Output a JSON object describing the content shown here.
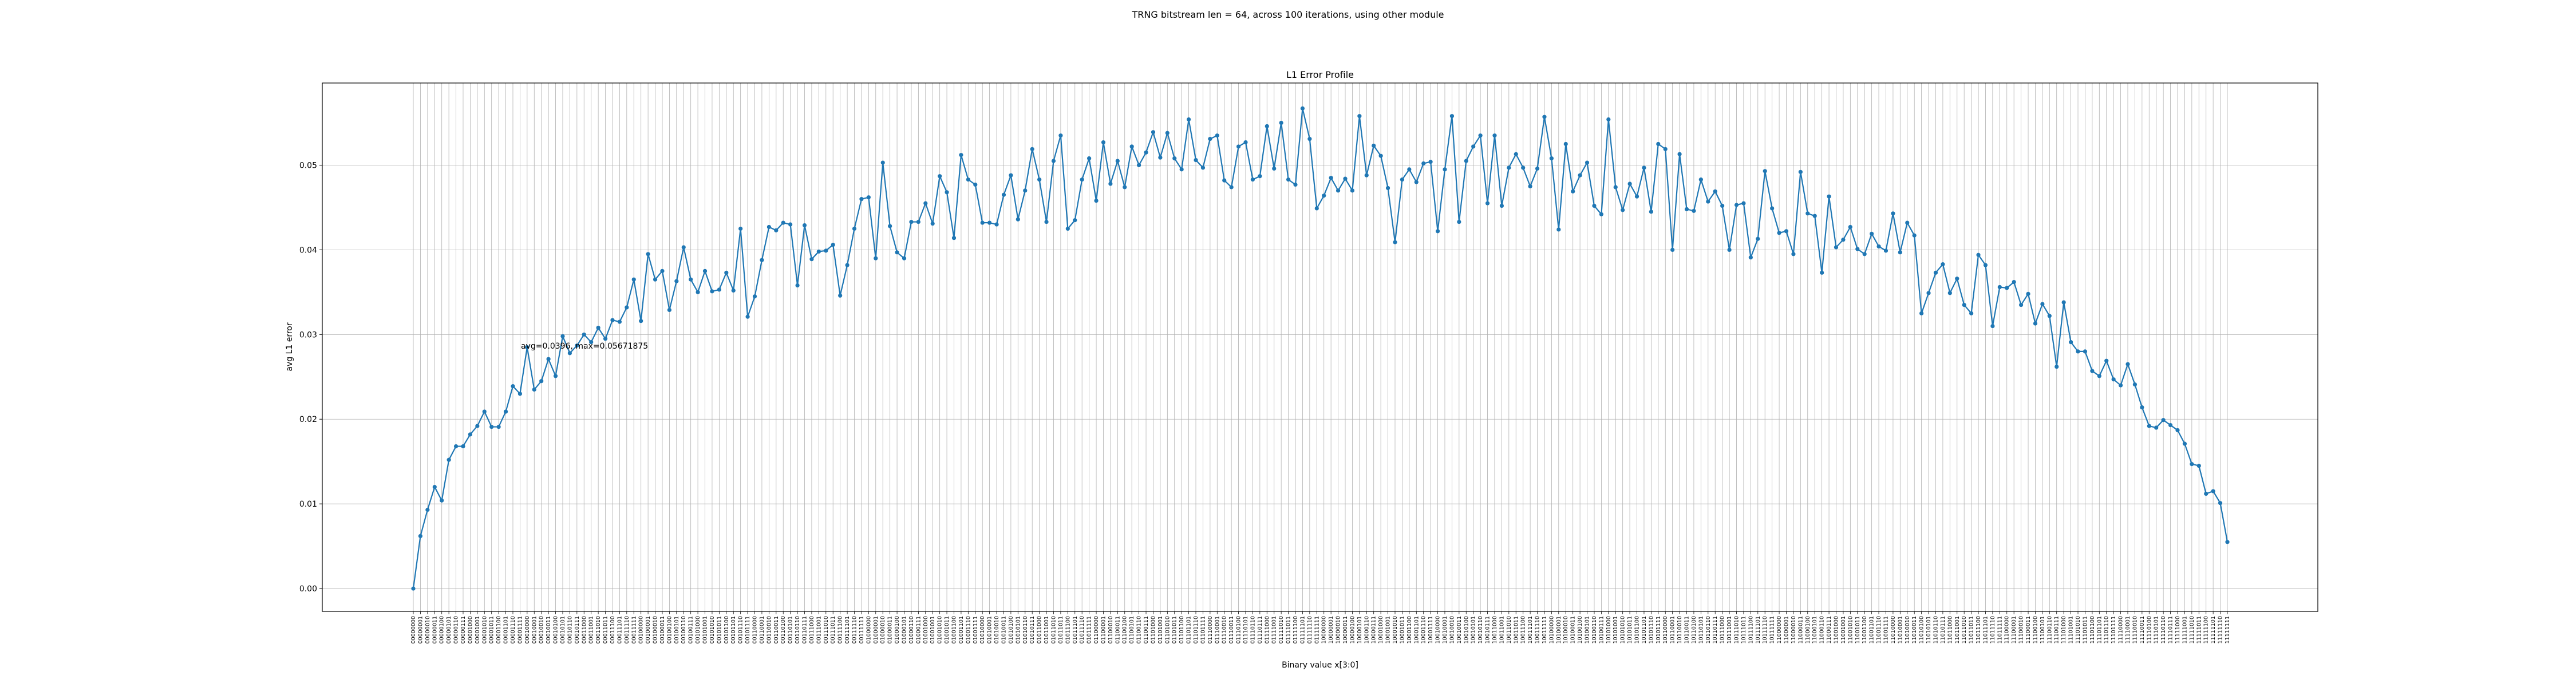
{
  "suptitle": "TRNG bitstream len = 64, across 100 iterations, using other module",
  "chart_data": {
    "type": "line",
    "title": "L1 Error Profile",
    "xlabel": "Binary value x[3:0]",
    "ylabel": "avg L1 error",
    "x_tick_labels": "8-bit binary strings 00000000 through 11111111 (256 categories)",
    "ylim": [
      -0.0027,
      0.0597
    ],
    "yticks": [
      "0.00",
      "0.01",
      "0.02",
      "0.03",
      "0.04",
      "0.05"
    ],
    "grid": true,
    "marker": "circle",
    "color": "#1f77b4",
    "annotation": "avg=0.0396, max=0.05671875",
    "values": [
      0.0,
      0.0062,
      0.0093,
      0.012,
      0.0104,
      0.0152,
      0.0168,
      0.0168,
      0.0182,
      0.0192,
      0.0209,
      0.0191,
      0.0191,
      0.0209,
      0.0239,
      0.023,
      0.0285,
      0.0235,
      0.0245,
      0.0271,
      0.0251,
      0.0298,
      0.0278,
      0.0287,
      0.03,
      0.0291,
      0.0308,
      0.0295,
      0.0317,
      0.0315,
      0.0332,
      0.0365,
      0.0316,
      0.0395,
      0.0365,
      0.0375,
      0.0329,
      0.0363,
      0.0403,
      0.0365,
      0.035,
      0.0375,
      0.0351,
      0.0353,
      0.0373,
      0.0352,
      0.0425,
      0.0321,
      0.0345,
      0.0388,
      0.0427,
      0.0423,
      0.0432,
      0.043,
      0.0358,
      0.0429,
      0.0389,
      0.0398,
      0.0399,
      0.0406,
      0.0346,
      0.0382,
      0.0425,
      0.046,
      0.0462,
      0.039,
      0.0503,
      0.0428,
      0.0397,
      0.039,
      0.0433,
      0.0433,
      0.0455,
      0.0431,
      0.0487,
      0.0468,
      0.0414,
      0.0512,
      0.0483,
      0.0477,
      0.0432,
      0.0432,
      0.043,
      0.0465,
      0.0488,
      0.0436,
      0.047,
      0.0519,
      0.0483,
      0.0433,
      0.0505,
      0.0535,
      0.0425,
      0.0435,
      0.0483,
      0.0508,
      0.0458,
      0.0527,
      0.0478,
      0.0505,
      0.0474,
      0.0522,
      0.05,
      0.0515,
      0.0539,
      0.0509,
      0.0538,
      0.0508,
      0.0495,
      0.0554,
      0.0506,
      0.0497,
      0.0531,
      0.0535,
      0.0482,
      0.0474,
      0.0522,
      0.0527,
      0.0483,
      0.0487,
      0.0546,
      0.0496,
      0.055,
      0.0483,
      0.0477,
      0.0567,
      0.0531,
      0.0449,
      0.0464,
      0.0485,
      0.047,
      0.0484,
      0.047,
      0.0558,
      0.0488,
      0.0523,
      0.0511,
      0.0473,
      0.0409,
      0.0483,
      0.0495,
      0.048,
      0.0502,
      0.0504,
      0.0422,
      0.0495,
      0.0558,
      0.0433,
      0.0505,
      0.0522,
      0.0535,
      0.0455,
      0.0535,
      0.0452,
      0.0497,
      0.0513,
      0.0497,
      0.0475,
      0.0496,
      0.0557,
      0.0508,
      0.0424,
      0.0525,
      0.0469,
      0.0488,
      0.0503,
      0.0452,
      0.0442,
      0.0554,
      0.0474,
      0.0447,
      0.0478,
      0.0463,
      0.0497,
      0.0445,
      0.0525,
      0.0519,
      0.04,
      0.0513,
      0.0448,
      0.0446,
      0.0483,
      0.0457,
      0.0469,
      0.0452,
      0.04,
      0.0453,
      0.0455,
      0.0391,
      0.0413,
      0.0493,
      0.0449,
      0.042,
      0.0422,
      0.0395,
      0.0492,
      0.0443,
      0.044,
      0.0373,
      0.0463,
      0.0403,
      0.0412,
      0.0427,
      0.0401,
      0.0395,
      0.0419,
      0.0404,
      0.0399,
      0.0443,
      0.0397,
      0.0432,
      0.0417,
      0.0325,
      0.0349,
      0.0373,
      0.0383,
      0.0349,
      0.0366,
      0.0335,
      0.0325,
      0.0394,
      0.0382,
      0.031,
      0.0356,
      0.0355,
      0.0362,
      0.0335,
      0.0348,
      0.0313,
      0.0336,
      0.0322,
      0.0262,
      0.0338,
      0.0291,
      0.028,
      0.028,
      0.0257,
      0.0251,
      0.0269,
      0.0247,
      0.024,
      0.0265,
      0.0241,
      0.0214,
      0.0192,
      0.019,
      0.0199,
      0.0193,
      0.0187,
      0.0171,
      0.0147,
      0.0145,
      0.0112,
      0.0115,
      0.0101,
      0.0055
    ]
  }
}
